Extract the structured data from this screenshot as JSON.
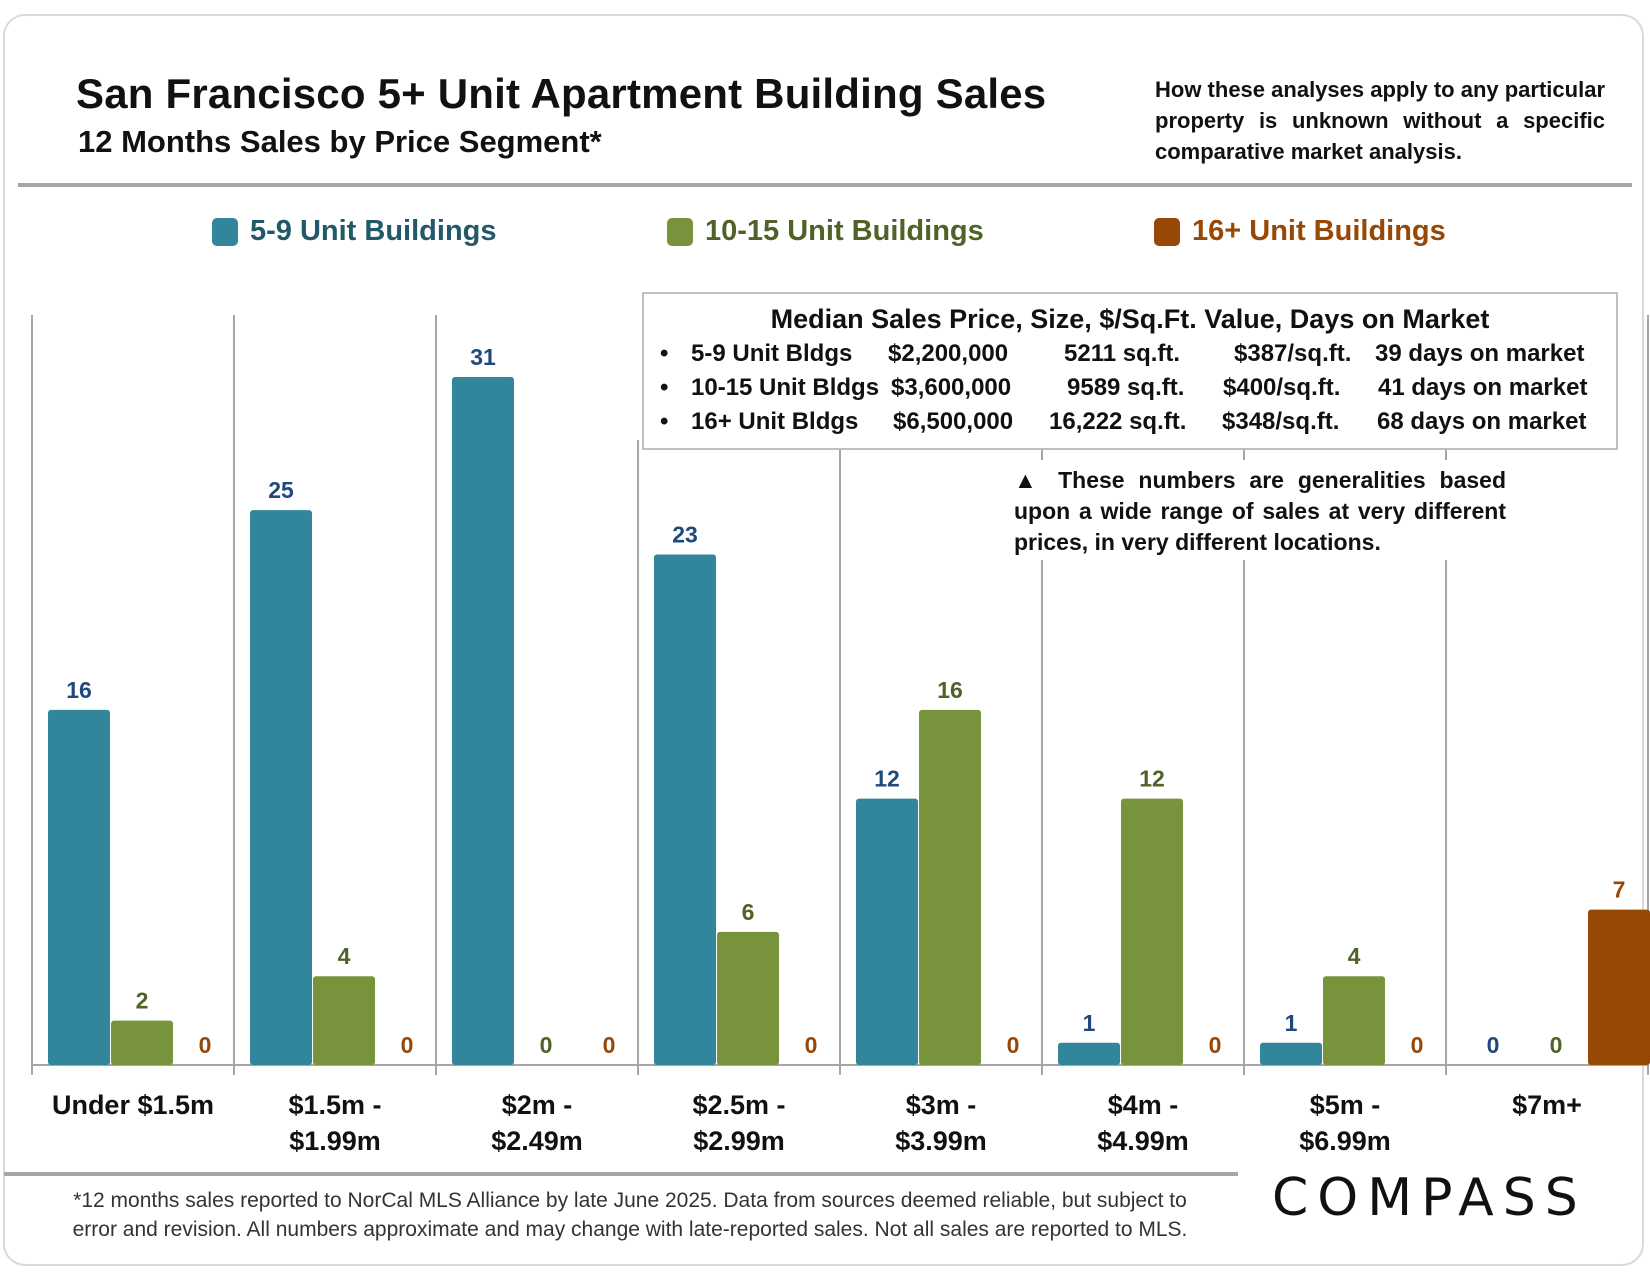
{
  "header": {
    "title": "San Francisco 5+ Unit Apartment Building Sales",
    "subtitle": "12 Months Sales by Price Segment*",
    "disclaimer": "How these analyses apply to any particular property is unknown without a specific comparative market analysis."
  },
  "stats_box": {
    "title": "Median Sales Price, Size, $/Sq.Ft. Value, Days on Market",
    "rows": [
      {
        "bullet": "•",
        "type": "5-9 Unit Bldgs",
        "price": "$2,200,000",
        "size": "5211 sq.ft.",
        "ppsf": "$387/sq.ft.",
        "dom": "39 days on market"
      },
      {
        "bullet": "•",
        "type": "10-15 Unit Bldgs",
        "price": "$3,600,000",
        "size": "9589 sq.ft.",
        "ppsf": "$400/sq.ft.",
        "dom": "41 days on market"
      },
      {
        "bullet": "•",
        "type": "16+ Unit Bldgs",
        "price": "$6,500,000",
        "size": "16,222 sq.ft.",
        "ppsf": "$348/sq.ft.",
        "dom": "68 days on market"
      }
    ]
  },
  "note": "▲ These numbers are generalities based upon a wide range of sales at very different prices, in very different locations.",
  "footnote": {
    "line1": "*12 months sales reported to NorCal MLS Alliance by late June 2025. Data from sources deemed reliable, but subject to",
    "line2": "error and revision. All numbers approximate and may change with late-reported sales. Not all sales are reported to MLS."
  },
  "logo": "COMPASS",
  "colors": {
    "series_5_9": "#31869b",
    "series_10_15": "#77933c",
    "series_16_plus": "#974706",
    "label_5_9": "#1f497d",
    "label_10_15": "#4f6228",
    "label_16_plus": "#974706",
    "legend_5_9_text": "#215968",
    "legend_10_15_text": "#4f6228",
    "legend_16_text": "#974706",
    "gridline": "#a6a6a6"
  },
  "chart_data": {
    "type": "bar",
    "categories": [
      [
        "Under $1.5m"
      ],
      [
        "$1.5m -",
        "$1.99m"
      ],
      [
        "$2m -",
        "$2.49m"
      ],
      [
        "$2.5m -",
        "$2.99m"
      ],
      [
        "$3m -",
        "$3.99m"
      ],
      [
        "$4m -",
        "$4.99m"
      ],
      [
        "$5m -",
        "$6.99m"
      ],
      [
        "$7m+"
      ]
    ],
    "series": [
      {
        "name": "5-9 Unit Buildings",
        "values": [
          16,
          25,
          31,
          23,
          12,
          1,
          1,
          0
        ]
      },
      {
        "name": "10-15 Unit Buildings",
        "values": [
          2,
          4,
          0,
          6,
          16,
          12,
          4,
          0
        ]
      },
      {
        "name": "16+ Unit Buildings",
        "values": [
          0,
          0,
          0,
          0,
          0,
          0,
          0,
          7
        ]
      }
    ],
    "ylim": [
      0,
      31
    ],
    "legend_position": "top",
    "data_labels": true,
    "grid": "vertical category separators"
  }
}
